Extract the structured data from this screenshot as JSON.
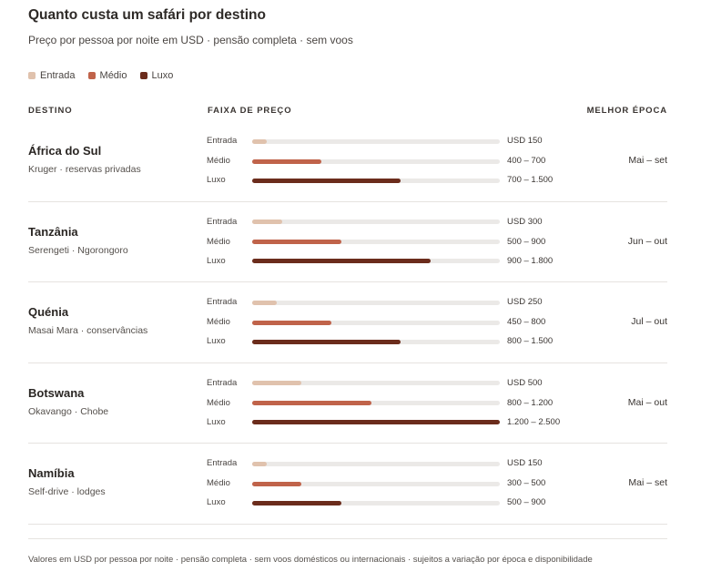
{
  "title": "Quanto custa um safári por destino",
  "subtitle": "Preço por pessoa por noite em USD · pensão completa · sem voos",
  "legend": [
    {
      "label": "Entrada",
      "color": "#e0c2ad"
    },
    {
      "label": "Médio",
      "color": "#c0634a"
    },
    {
      "label": "Luxo",
      "color": "#6b2c1c"
    }
  ],
  "headers": {
    "destination": "DESTINO",
    "range": "FAIXA DE PREÇO",
    "season": "MELHOR ÉPOCA"
  },
  "chart_data": {
    "type": "bar",
    "scale_max": 2500,
    "destinations": [
      {
        "name": "África do Sul",
        "sub": "Kruger · reservas privadas",
        "season": "Mai – set",
        "tiers": [
          {
            "tier": "Entrada",
            "label": "USD 150",
            "value": 150
          },
          {
            "tier": "Médio",
            "label": "400 – 700",
            "value": 700
          },
          {
            "tier": "Luxo",
            "label": "700 – 1.500",
            "value": 1500
          }
        ]
      },
      {
        "name": "Tanzânia",
        "sub": "Serengeti · Ngorongoro",
        "season": "Jun – out",
        "tiers": [
          {
            "tier": "Entrada",
            "label": "USD 300",
            "value": 300
          },
          {
            "tier": "Médio",
            "label": "500 – 900",
            "value": 900
          },
          {
            "tier": "Luxo",
            "label": "900 – 1.800",
            "value": 1800
          }
        ]
      },
      {
        "name": "Quénia",
        "sub": "Masai Mara · conservâncias",
        "season": "Jul – out",
        "tiers": [
          {
            "tier": "Entrada",
            "label": "USD 250",
            "value": 250
          },
          {
            "tier": "Médio",
            "label": "450 – 800",
            "value": 800
          },
          {
            "tier": "Luxo",
            "label": "800 – 1.500",
            "value": 1500
          }
        ]
      },
      {
        "name": "Botswana",
        "sub": "Okavango · Chobe",
        "season": "Mai – out",
        "tiers": [
          {
            "tier": "Entrada",
            "label": "USD 500",
            "value": 500
          },
          {
            "tier": "Médio",
            "label": "800 – 1.200",
            "value": 1200
          },
          {
            "tier": "Luxo",
            "label": "1.200 – 2.500",
            "value": 2500
          }
        ]
      },
      {
        "name": "Namíbia",
        "sub": "Self-drive · lodges",
        "season": "Mai – set",
        "tiers": [
          {
            "tier": "Entrada",
            "label": "USD 150",
            "value": 150
          },
          {
            "tier": "Médio",
            "label": "300 – 500",
            "value": 500
          },
          {
            "tier": "Luxo",
            "label": "500 – 900",
            "value": 900
          }
        ]
      }
    ]
  },
  "footnote": "Valores em USD por pessoa por noite · pensão completa · sem voos domésticos ou internacionais · sujeitos a variação por época e disponibilidade"
}
